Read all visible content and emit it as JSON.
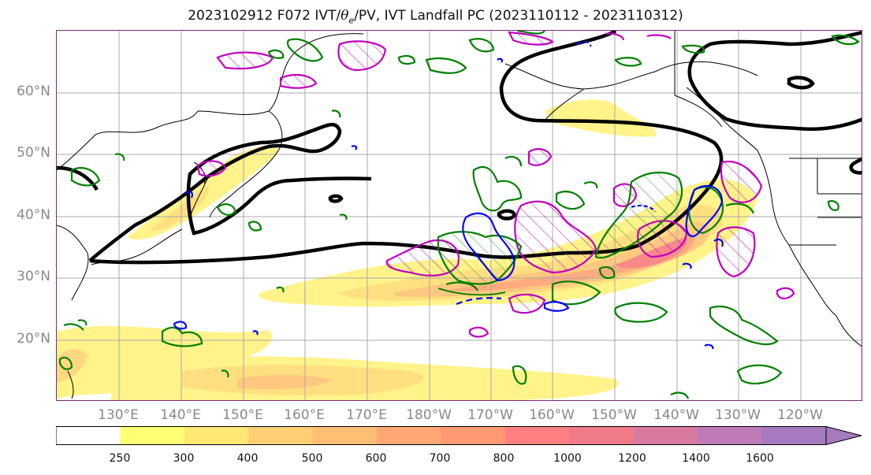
{
  "title": {
    "prefix": "2023102912 F072 IVT/",
    "theta": "θ",
    "sub": "e",
    "suffix": "/PV, IVT Landfall PC (2023110112 - 2023110312)"
  },
  "lat_labels": [
    "60°N",
    "50°N",
    "40°N",
    "30°N",
    "20°N"
  ],
  "lon_labels": [
    "130°E",
    "140°E",
    "150°E",
    "160°E",
    "170°E",
    "180°W",
    "170°W",
    "160°W",
    "150°W",
    "140°W",
    "130°W",
    "120°W"
  ],
  "colorbar": {
    "ticks": [
      "250",
      "300",
      "400",
      "500",
      "600",
      "700",
      "800",
      "1000",
      "1200",
      "1400",
      "1600"
    ],
    "colors": [
      "#ffffff",
      "#ffff73",
      "#ffe873",
      "#ffd073",
      "#ffbe73",
      "#ffa873",
      "#ff9873",
      "#ff8080",
      "#f07a8a",
      "#d87aa0",
      "#bf7ab8",
      "#a67abf"
    ]
  },
  "legend_colors": {
    "pv_contour": "#0000ff",
    "theta_contour": "#008000",
    "pc_contour": "#c000c0",
    "ivt_jet": "#000000"
  }
}
